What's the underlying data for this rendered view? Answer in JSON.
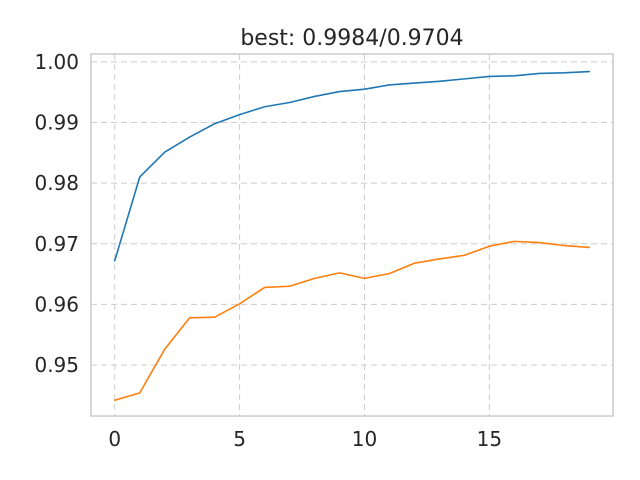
{
  "chart_data": {
    "type": "line",
    "title": "best: 0.9984/0.9704",
    "xlabel": "",
    "ylabel": "",
    "x": [
      0,
      1,
      2,
      3,
      4,
      5,
      6,
      7,
      8,
      9,
      10,
      11,
      12,
      13,
      14,
      15,
      16,
      17,
      18,
      19
    ],
    "xlim": [
      -0.95,
      19.95
    ],
    "ylim": [
      0.9416,
      1.0013
    ],
    "xticks": [
      0,
      5,
      10,
      15
    ],
    "yticks": [
      0.95,
      0.96,
      0.97,
      0.98,
      0.99,
      1.0
    ],
    "xtick_labels": [
      "0",
      "5",
      "10",
      "15"
    ],
    "ytick_labels": [
      "0.95",
      "0.96",
      "0.97",
      "0.98",
      "0.99",
      "1.00"
    ],
    "grid": true,
    "series": [
      {
        "color": "#1f77b4",
        "values": [
          0.9672,
          0.981,
          0.9851,
          0.9876,
          0.9898,
          0.9913,
          0.9926,
          0.9933,
          0.9943,
          0.9951,
          0.9955,
          0.9962,
          0.9965,
          0.9968,
          0.9972,
          0.9976,
          0.9977,
          0.9981,
          0.9982,
          0.9984
        ]
      },
      {
        "color": "#ff7f0e",
        "values": [
          0.9442,
          0.9454,
          0.9526,
          0.9578,
          0.9579,
          0.9601,
          0.9628,
          0.963,
          0.9643,
          0.9652,
          0.9643,
          0.9651,
          0.9668,
          0.9675,
          0.9681,
          0.9696,
          0.9704,
          0.9702,
          0.9697,
          0.9694
        ]
      }
    ]
  }
}
